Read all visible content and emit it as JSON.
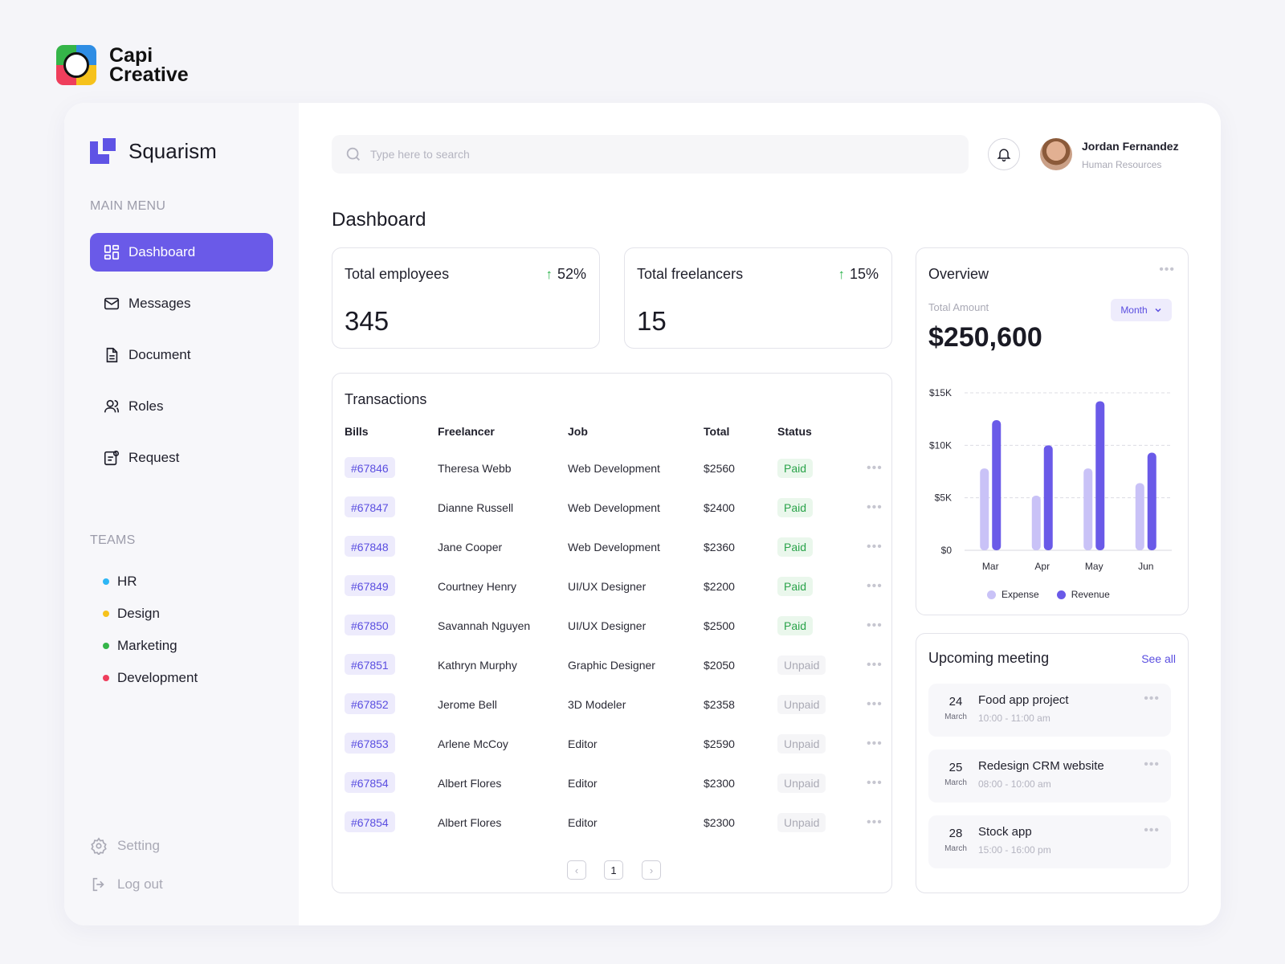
{
  "brand": {
    "line1": "Capi",
    "line2": "Creative"
  },
  "app": {
    "name": "Squarism"
  },
  "sidebar": {
    "main_menu_label": "MAIN MENU",
    "items": [
      {
        "label": "Dashboard",
        "icon": "dashboard-icon",
        "active": true
      },
      {
        "label": "Messages",
        "icon": "mail-icon"
      },
      {
        "label": "Document",
        "icon": "document-icon"
      },
      {
        "label": "Roles",
        "icon": "users-icon"
      },
      {
        "label": "Request",
        "icon": "request-icon"
      }
    ],
    "teams_label": "TEAMS",
    "teams": [
      {
        "label": "HR",
        "color": "#2db6f5"
      },
      {
        "label": "Design",
        "color": "#f6c21c"
      },
      {
        "label": "Marketing",
        "color": "#35b549"
      },
      {
        "label": "Development",
        "color": "#ef3e5c"
      }
    ],
    "setting_label": "Setting",
    "logout_label": "Log out"
  },
  "search": {
    "placeholder": "Type here to search"
  },
  "user": {
    "name": "Jordan Fernandez",
    "role": "Human Resources"
  },
  "page_title": "Dashboard",
  "stats": [
    {
      "title": "Total employees",
      "delta": "52%",
      "value": "345"
    },
    {
      "title": "Total freelancers",
      "delta": "15%",
      "value": "15"
    }
  ],
  "transactions": {
    "title": "Transactions",
    "columns": [
      "Bills",
      "Freelancer",
      "Job",
      "Total",
      "Status"
    ],
    "rows": [
      {
        "bill": "#67846",
        "freelancer": "Theresa Webb",
        "job": "Web Development",
        "total": "$2560",
        "status": "Paid"
      },
      {
        "bill": "#67847",
        "freelancer": "Dianne Russell",
        "job": "Web Development",
        "total": "$2400",
        "status": "Paid"
      },
      {
        "bill": "#67848",
        "freelancer": "Jane Cooper",
        "job": "Web Development",
        "total": "$2360",
        "status": "Paid"
      },
      {
        "bill": "#67849",
        "freelancer": "Courtney Henry",
        "job": "UI/UX Designer",
        "total": "$2200",
        "status": "Paid"
      },
      {
        "bill": "#67850",
        "freelancer": "Savannah Nguyen",
        "job": "UI/UX Designer",
        "total": "$2500",
        "status": "Paid"
      },
      {
        "bill": "#67851",
        "freelancer": "Kathryn Murphy",
        "job": "Graphic Designer",
        "total": "$2050",
        "status": "Unpaid"
      },
      {
        "bill": "#67852",
        "freelancer": "Jerome Bell",
        "job": "3D Modeler",
        "total": "$2358",
        "status": "Unpaid"
      },
      {
        "bill": "#67853",
        "freelancer": "Arlene McCoy",
        "job": "Editor",
        "total": "$2590",
        "status": "Unpaid"
      },
      {
        "bill": "#67854",
        "freelancer": "Albert Flores",
        "job": "Editor",
        "total": "$2300",
        "status": "Unpaid"
      },
      {
        "bill": "#67854",
        "freelancer": "Albert Flores",
        "job": "Editor",
        "total": "$2300",
        "status": "Unpaid"
      }
    ],
    "pagination": {
      "prev": "‹",
      "page": "1",
      "next": "›"
    },
    "more_glyph": "•••"
  },
  "overview": {
    "title": "Overview",
    "total_label": "Total Amount",
    "total_value": "$250,600",
    "period": "Month",
    "more_glyph": "•••"
  },
  "chart_data": {
    "type": "bar",
    "categories": [
      "Mar",
      "Apr",
      "May",
      "Jun"
    ],
    "series": [
      {
        "name": "Expense",
        "values": [
          7800,
          5200,
          7800,
          6400
        ],
        "color": "#c9c2f7"
      },
      {
        "name": "Revenue",
        "values": [
          12400,
          10000,
          14200,
          9300
        ],
        "color": "#6a5ae8"
      }
    ],
    "ytick_labels": [
      "$0",
      "$5K",
      "$10K",
      "$15K"
    ],
    "ytick_values": [
      0,
      5000,
      10000,
      15000
    ],
    "ylim": [
      0,
      15000
    ],
    "grid": true,
    "legend": "bottom"
  },
  "meetings": {
    "title": "Upcoming meeting",
    "see_all": "See all",
    "items": [
      {
        "day": "24",
        "month": "March",
        "name": "Food app project",
        "time": "10:00 - 11:00 am"
      },
      {
        "day": "25",
        "month": "March",
        "name": "Redesign CRM website",
        "time": "08:00 - 10:00 am"
      },
      {
        "day": "28",
        "month": "March",
        "name": "Stock app",
        "time": "15:00 - 16:00 pm"
      }
    ],
    "more_glyph": "•••"
  }
}
